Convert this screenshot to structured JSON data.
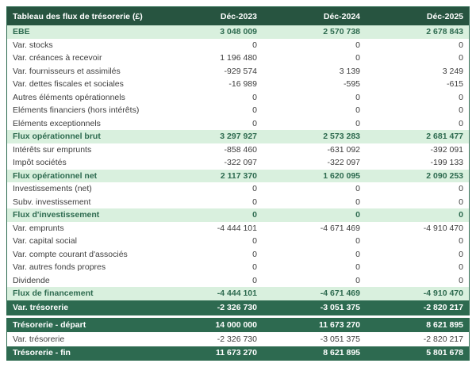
{
  "table": {
    "title": "Tableau des flux de trésorerie (£)",
    "columns": [
      "Déc-2023",
      "Déc-2024",
      "Déc-2025"
    ],
    "rows": [
      {
        "label": "EBE",
        "values": [
          "3 048 009",
          "2 570 738",
          "2 678 843"
        ],
        "style": "subtotal"
      },
      {
        "label": "Var. stocks",
        "values": [
          "0",
          "0",
          "0"
        ],
        "style": "normal"
      },
      {
        "label": "Var. créances à recevoir",
        "values": [
          "1 196 480",
          "0",
          "0"
        ],
        "style": "normal"
      },
      {
        "label": "Var. fournisseurs et assimilés",
        "values": [
          "-929 574",
          "3 139",
          "3 249"
        ],
        "style": "normal"
      },
      {
        "label": "Var. dettes fiscales et sociales",
        "values": [
          "-16 989",
          "-595",
          "-615"
        ],
        "style": "normal"
      },
      {
        "label": "Autres éléments opérationnels",
        "values": [
          "0",
          "0",
          "0"
        ],
        "style": "normal"
      },
      {
        "label": "Eléments financiers (hors intérêts)",
        "values": [
          "0",
          "0",
          "0"
        ],
        "style": "normal"
      },
      {
        "label": "Eléments exceptionnels",
        "values": [
          "0",
          "0",
          "0"
        ],
        "style": "normal"
      },
      {
        "label": "Flux opérationnel brut",
        "values": [
          "3 297 927",
          "2 573 283",
          "2 681 477"
        ],
        "style": "subtotal"
      },
      {
        "label": "Intérêts sur emprunts",
        "values": [
          "-858 460",
          "-631 092",
          "-392 091"
        ],
        "style": "normal"
      },
      {
        "label": "Impôt sociétés",
        "values": [
          "-322 097",
          "-322 097",
          "-199 133"
        ],
        "style": "normal"
      },
      {
        "label": "Flux opérationnel net",
        "values": [
          "2 117 370",
          "1 620 095",
          "2 090 253"
        ],
        "style": "subtotal"
      },
      {
        "label": "Investissements (net)",
        "values": [
          "0",
          "0",
          "0"
        ],
        "style": "normal"
      },
      {
        "label": "Subv. investissement",
        "values": [
          "0",
          "0",
          "0"
        ],
        "style": "normal"
      },
      {
        "label": "Flux d'investissement",
        "values": [
          "0",
          "0",
          "0"
        ],
        "style": "subtotal"
      },
      {
        "label": "Var. emprunts",
        "values": [
          "-4 444 101",
          "-4 671 469",
          "-4 910 470"
        ],
        "style": "normal"
      },
      {
        "label": "Var. capital social",
        "values": [
          "0",
          "0",
          "0"
        ],
        "style": "normal"
      },
      {
        "label": "Var. compte courant d'associés",
        "values": [
          "0",
          "0",
          "0"
        ],
        "style": "normal"
      },
      {
        "label": "Var. autres fonds propres",
        "values": [
          "0",
          "0",
          "0"
        ],
        "style": "normal"
      },
      {
        "label": "Dividende",
        "values": [
          "0",
          "0",
          "0"
        ],
        "style": "normal"
      },
      {
        "label": "Flux de financement",
        "values": [
          "-4 444 101",
          "-4 671 469",
          "-4 910 470"
        ],
        "style": "subtotal"
      },
      {
        "label": "Var. trésorerie",
        "values": [
          "-2 326 730",
          "-3 051 375",
          "-2 820 217"
        ],
        "style": "dark"
      }
    ],
    "summary_rows": [
      {
        "label": "Trésorerie - départ",
        "values": [
          "14 000 000",
          "11 673 270",
          "8 621 895"
        ],
        "style": "dark"
      },
      {
        "label": "Var. trésorerie",
        "values": [
          "-2 326 730",
          "-3 051 375",
          "-2 820 217"
        ],
        "style": "normal"
      },
      {
        "label": "Trésorerie - fin",
        "values": [
          "11 673 270",
          "8 621 895",
          "5 801 678"
        ],
        "style": "dark"
      }
    ]
  },
  "colors": {
    "header_bg": "#275440",
    "dark_row_bg": "#2d6a50",
    "subtotal_bg": "#d9f0de",
    "subtotal_text": "#2d6a4f",
    "body_text": "#3d3d3d",
    "border": "#2d6a4f",
    "header_text": "#ffffff"
  },
  "chart_data": {
    "type": "table",
    "title": "Tableau des flux de trésorerie (£)",
    "columns": [
      "Déc-2023",
      "Déc-2024",
      "Déc-2025"
    ],
    "rows": [
      {
        "label": "EBE",
        "values": [
          3048009,
          2570738,
          2678843
        ]
      },
      {
        "label": "Var. stocks",
        "values": [
          0,
          0,
          0
        ]
      },
      {
        "label": "Var. créances à recevoir",
        "values": [
          1196480,
          0,
          0
        ]
      },
      {
        "label": "Var. fournisseurs et assimilés",
        "values": [
          -929574,
          3139,
          3249
        ]
      },
      {
        "label": "Var. dettes fiscales et sociales",
        "values": [
          -16989,
          -595,
          -615
        ]
      },
      {
        "label": "Autres éléments opérationnels",
        "values": [
          0,
          0,
          0
        ]
      },
      {
        "label": "Eléments financiers (hors intérêts)",
        "values": [
          0,
          0,
          0
        ]
      },
      {
        "label": "Eléments exceptionnels",
        "values": [
          0,
          0,
          0
        ]
      },
      {
        "label": "Flux opérationnel brut",
        "values": [
          3297927,
          2573283,
          2681477
        ]
      },
      {
        "label": "Intérêts sur emprunts",
        "values": [
          -858460,
          -631092,
          -392091
        ]
      },
      {
        "label": "Impôt sociétés",
        "values": [
          -322097,
          -322097,
          -199133
        ]
      },
      {
        "label": "Flux opérationnel net",
        "values": [
          2117370,
          1620095,
          2090253
        ]
      },
      {
        "label": "Investissements (net)",
        "values": [
          0,
          0,
          0
        ]
      },
      {
        "label": "Subv. investissement",
        "values": [
          0,
          0,
          0
        ]
      },
      {
        "label": "Flux d'investissement",
        "values": [
          0,
          0,
          0
        ]
      },
      {
        "label": "Var. emprunts",
        "values": [
          -4444101,
          -4671469,
          -4910470
        ]
      },
      {
        "label": "Var. capital social",
        "values": [
          0,
          0,
          0
        ]
      },
      {
        "label": "Var. compte courant d'associés",
        "values": [
          0,
          0,
          0
        ]
      },
      {
        "label": "Var. autres fonds propres",
        "values": [
          0,
          0,
          0
        ]
      },
      {
        "label": "Dividende",
        "values": [
          0,
          0,
          0
        ]
      },
      {
        "label": "Flux de financement",
        "values": [
          -4444101,
          -4671469,
          -4910470
        ]
      },
      {
        "label": "Var. trésorerie",
        "values": [
          -2326730,
          -3051375,
          -2820217
        ]
      },
      {
        "label": "Trésorerie - départ",
        "values": [
          14000000,
          11673270,
          8621895
        ]
      },
      {
        "label": "Var. trésorerie",
        "values": [
          -2326730,
          -3051375,
          -2820217
        ]
      },
      {
        "label": "Trésorerie - fin",
        "values": [
          11673270,
          8621895,
          5801678
        ]
      }
    ]
  }
}
